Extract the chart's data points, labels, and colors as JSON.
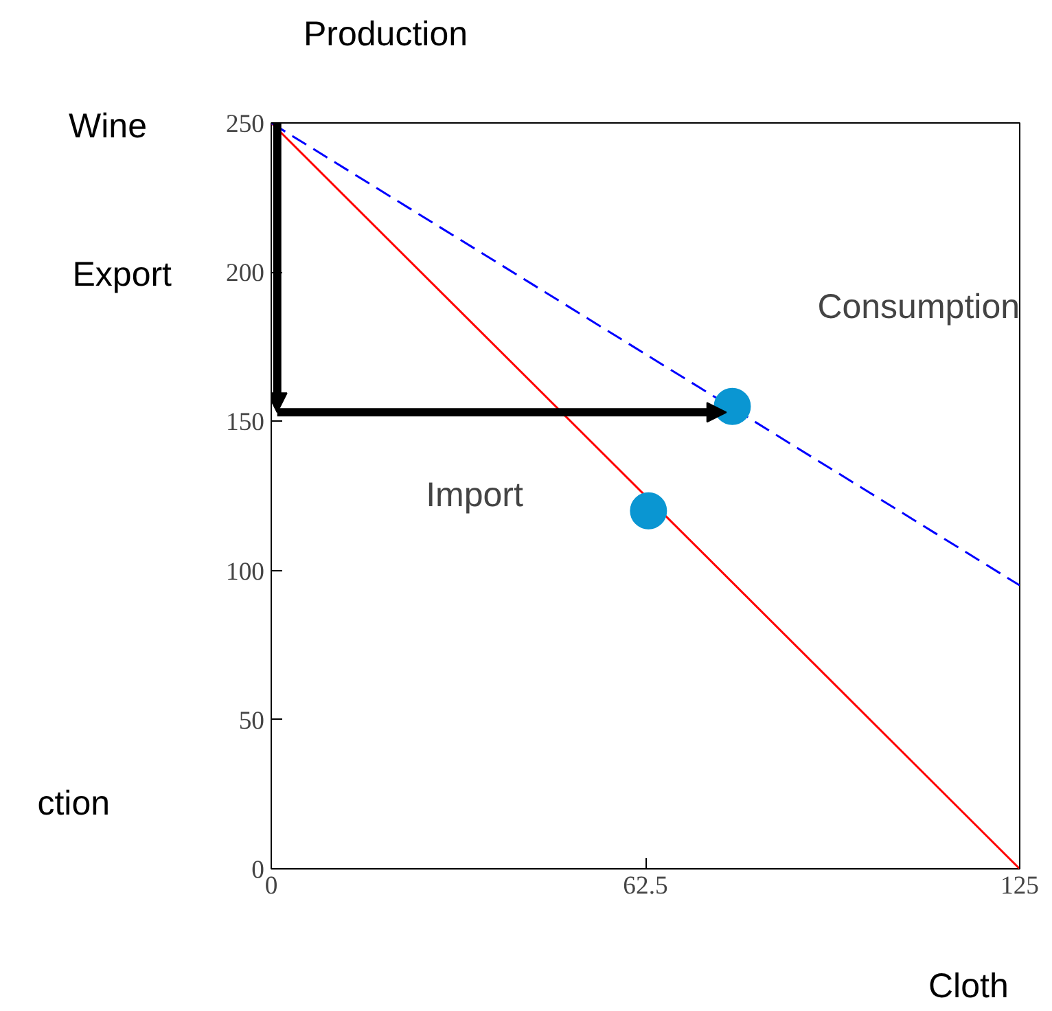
{
  "chart_data": {
    "type": "line",
    "title": "Production",
    "xlabel": "Cloth",
    "ylabel": "Wine",
    "annotations": [
      "Export",
      "Consumption",
      "Import",
      "ction"
    ],
    "xlim": [
      0,
      125
    ],
    "ylim": [
      0,
      250
    ],
    "xticks": [
      0,
      62.5,
      125
    ],
    "yticks": [
      0,
      50,
      100,
      150,
      200,
      250
    ],
    "grid": false,
    "series": [
      {
        "color": "#ff0000",
        "x": [
          0,
          125
        ],
        "values": [
          250,
          0
        ],
        "line_style": "solid"
      },
      {
        "color": "#0000ff",
        "x": [
          0,
          125
        ],
        "values": [
          250,
          95
        ],
        "line_style": "dashed"
      },
      {
        "type": "scatter",
        "color": "#0a96d2",
        "x": [
          63,
          77
        ],
        "values": [
          120,
          155
        ],
        "marker": "circle"
      }
    ]
  }
}
